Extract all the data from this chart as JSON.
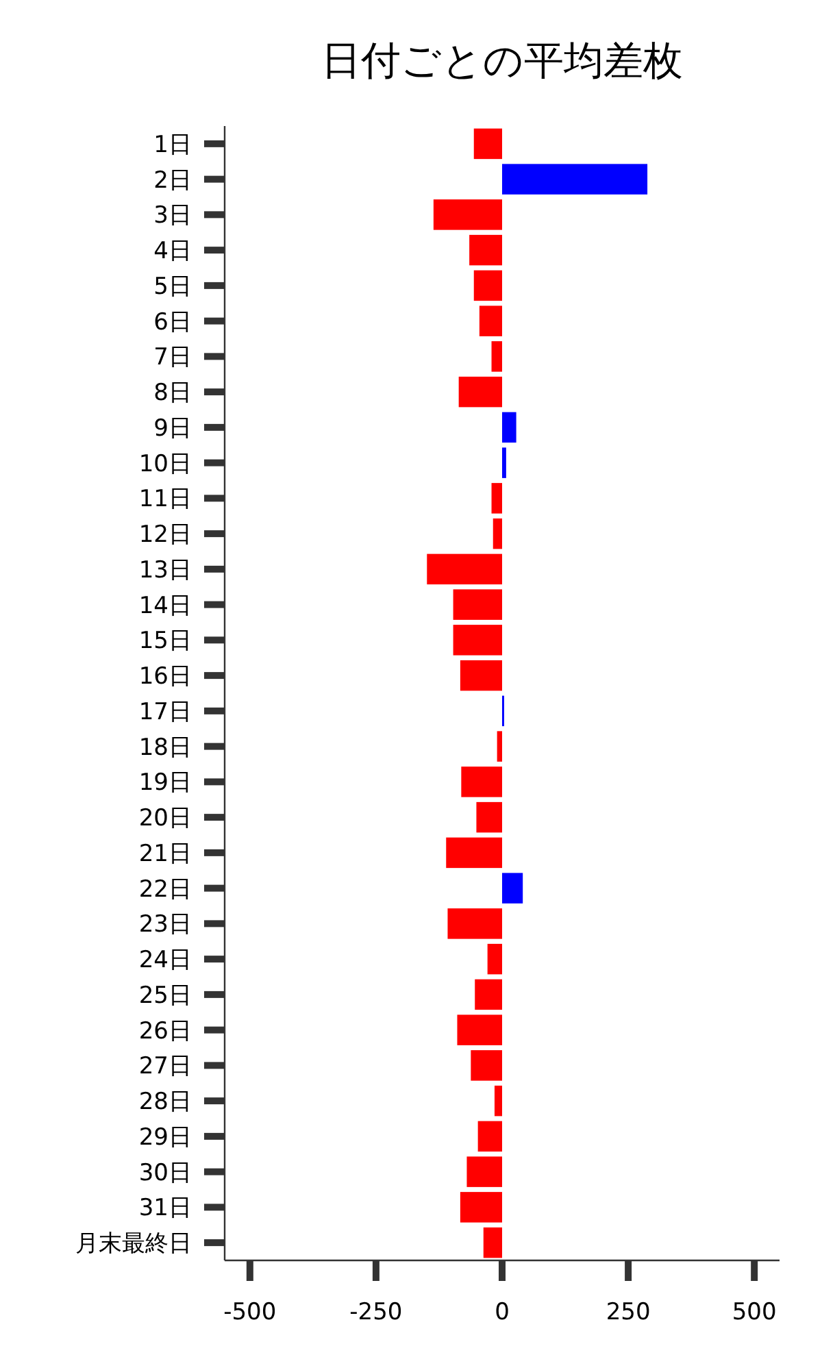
{
  "chart_data": {
    "type": "bar",
    "orientation": "horizontal",
    "title": "日付ごとの平均差枚",
    "categories": [
      "1日",
      "2日",
      "3日",
      "4日",
      "5日",
      "6日",
      "7日",
      "8日",
      "9日",
      "10日",
      "11日",
      "12日",
      "13日",
      "14日",
      "15日",
      "16日",
      "17日",
      "18日",
      "19日",
      "20日",
      "21日",
      "22日",
      "23日",
      "24日",
      "25日",
      "26日",
      "27日",
      "28日",
      "29日",
      "30日",
      "31日",
      "月末最終日"
    ],
    "values": [
      -56,
      288,
      -136,
      -65,
      -56,
      -45,
      -21,
      -86,
      28,
      8,
      -21,
      -18,
      -149,
      -97,
      -97,
      -83,
      4,
      -10,
      -81,
      -51,
      -111,
      41,
      -108,
      -29,
      -54,
      -89,
      -62,
      -15,
      -48,
      -70,
      -83,
      -37
    ],
    "colors": [
      "#ff0000",
      "#0000ff",
      "#ff0000",
      "#ff0000",
      "#ff0000",
      "#ff0000",
      "#ff0000",
      "#ff0000",
      "#0000ff",
      "#0000ff",
      "#ff0000",
      "#ff0000",
      "#ff0000",
      "#ff0000",
      "#ff0000",
      "#ff0000",
      "#0000ff",
      "#ff0000",
      "#ff0000",
      "#ff0000",
      "#ff0000",
      "#0000ff",
      "#ff0000",
      "#ff0000",
      "#ff0000",
      "#ff0000",
      "#ff0000",
      "#ff0000",
      "#ff0000",
      "#ff0000",
      "#ff0000",
      "#ff0000"
    ],
    "xlim": [
      -550,
      550
    ],
    "xticks": [
      -500,
      -250,
      0,
      250,
      500
    ]
  }
}
